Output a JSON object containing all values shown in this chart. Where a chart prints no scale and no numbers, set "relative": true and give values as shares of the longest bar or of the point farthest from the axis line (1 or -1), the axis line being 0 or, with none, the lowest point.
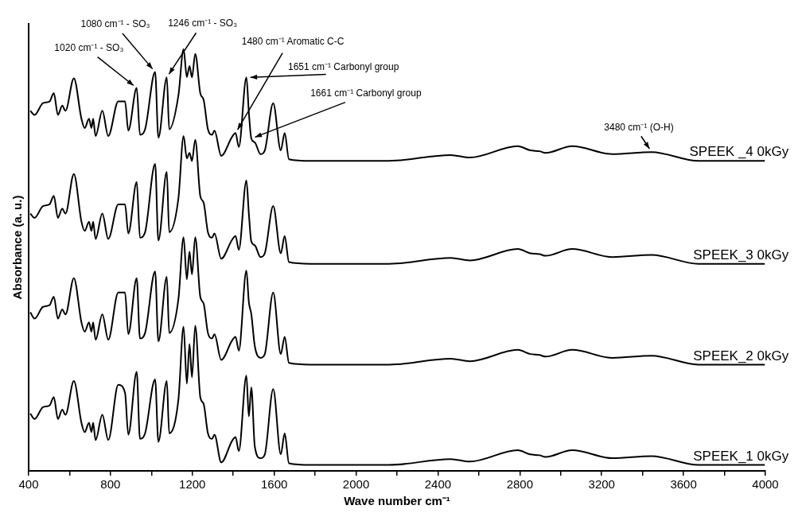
{
  "chart_data": {
    "type": "line",
    "xlabel": "Wave number cm⁻¹",
    "ylabel": "Absorbance (a. u.)",
    "relative": true,
    "marker": "none",
    "grid": false,
    "legend": false,
    "xlim": [
      400,
      4000
    ],
    "xticks": [
      400,
      {
        "value": 600,
        "label": null
      },
      800,
      {
        "value": 1000,
        "label": null
      },
      1200,
      {
        "value": 1400,
        "label": null
      },
      1600,
      {
        "value": 1800,
        "label": null
      },
      2000,
      {
        "value": 2200,
        "label": null
      },
      2400,
      {
        "value": 2600,
        "label": null
      },
      2800,
      {
        "value": 3000,
        "label": null
      },
      3200,
      {
        "value": 3400,
        "label": null
      },
      3600,
      {
        "value": 3800,
        "label": null
      },
      4000
    ],
    "x": [
      408,
      429,
      470,
      502,
      523,
      543,
      564,
      580,
      621,
      658,
      674,
      695,
      707,
      715,
      727,
      760,
      789,
      838,
      871,
      887,
      928,
      944,
      969,
      1018,
      1034,
      1075,
      1087,
      1132,
      1157,
      1173,
      1186,
      1198,
      1214,
      1239,
      1255,
      1276,
      1296,
      1308,
      1341,
      1394,
      1411,
      1427,
      1464,
      1476,
      1488,
      1505,
      1533,
      1554,
      1595,
      1632,
      1651,
      1672,
      1779,
      2160,
      2462,
      2556,
      2790,
      2851,
      2896,
      2925,
      3056,
      3252,
      3444,
      3673,
      3997
    ],
    "series": [
      {
        "name": "SPEEK _4 0kGy",
        "color": "#000000",
        "values": [
          0.854,
          0.844,
          0.872,
          0.876,
          0.896,
          0.844,
          0.866,
          0.854,
          0.931,
          0.835,
          0.813,
          0.835,
          0.813,
          0.835,
          0.794,
          0.854,
          0.794,
          0.876,
          0.876,
          0.807,
          0.908,
          0.797,
          0.81,
          0.946,
          0.79,
          0.933,
          0.81,
          0.891,
          1.0,
          0.934,
          0.96,
          0.933,
          0.989,
          0.895,
          0.88,
          0.81,
          0.797,
          0.807,
          0.747,
          0.792,
          0.801,
          0.768,
          0.933,
          0.85,
          0.788,
          0.779,
          0.751,
          0.76,
          0.872,
          0.76,
          0.801,
          0.739,
          0.735,
          0.735,
          0.749,
          0.743,
          0.77,
          0.76,
          0.758,
          0.754,
          0.77,
          0.751,
          0.756,
          0.735,
          0.735
        ]
      },
      {
        "name": "SPEEK_3 0kGy",
        "color": "#000000",
        "values": [
          0.61,
          0.6,
          0.628,
          0.632,
          0.652,
          0.6,
          0.622,
          0.61,
          0.704,
          0.591,
          0.569,
          0.591,
          0.569,
          0.591,
          0.55,
          0.61,
          0.55,
          0.632,
          0.632,
          0.563,
          0.685,
          0.553,
          0.566,
          0.728,
          0.546,
          0.709,
          0.566,
          0.647,
          0.794,
          0.741,
          0.754,
          0.735,
          0.785,
          0.651,
          0.636,
          0.566,
          0.553,
          0.563,
          0.503,
          0.548,
          0.557,
          0.524,
          0.689,
          0.61,
          0.544,
          0.535,
          0.507,
          0.516,
          0.628,
          0.516,
          0.557,
          0.495,
          0.491,
          0.491,
          0.505,
          0.499,
          0.526,
          0.516,
          0.514,
          0.51,
          0.526,
          0.507,
          0.512,
          0.491,
          0.491
        ]
      },
      {
        "name": "SPEEK_2 0kGy",
        "color": "#000000",
        "values": [
          0.376,
          0.361,
          0.389,
          0.393,
          0.413,
          0.361,
          0.383,
          0.371,
          0.457,
          0.352,
          0.33,
          0.352,
          0.33,
          0.352,
          0.311,
          0.371,
          0.311,
          0.423,
          0.423,
          0.324,
          0.457,
          0.314,
          0.327,
          0.473,
          0.307,
          0.46,
          0.327,
          0.408,
          0.554,
          0.454,
          0.52,
          0.466,
          0.554,
          0.412,
          0.397,
          0.327,
          0.314,
          0.324,
          0.263,
          0.309,
          0.318,
          0.285,
          0.475,
          0.4,
          0.372,
          0.296,
          0.268,
          0.277,
          0.423,
          0.277,
          0.318,
          0.256,
          0.252,
          0.252,
          0.266,
          0.26,
          0.287,
          0.277,
          0.275,
          0.271,
          0.287,
          0.268,
          0.273,
          0.252,
          0.252
        ]
      },
      {
        "name": "SPEEK_1 0kGy",
        "color": "#000000",
        "values": [
          0.136,
          0.123,
          0.151,
          0.155,
          0.175,
          0.123,
          0.145,
          0.133,
          0.213,
          0.114,
          0.092,
          0.114,
          0.092,
          0.114,
          0.073,
          0.133,
          0.073,
          0.204,
          0.185,
          0.086,
          0.235,
          0.076,
          0.089,
          0.217,
          0.069,
          0.213,
          0.089,
          0.17,
          0.342,
          0.207,
          0.301,
          0.222,
          0.344,
          0.174,
          0.159,
          0.089,
          0.076,
          0.086,
          0.02,
          0.071,
          0.08,
          0.047,
          0.226,
          0.129,
          0.198,
          0.058,
          0.03,
          0.039,
          0.194,
          0.039,
          0.089,
          0.018,
          0.014,
          0.014,
          0.028,
          0.022,
          0.049,
          0.039,
          0.037,
          0.033,
          0.049,
          0.03,
          0.035,
          0.014,
          0.014
        ]
      }
    ],
    "annotations": [
      {
        "text": "1020 cm⁻¹ - SO₃",
        "x": 928,
        "y": 0.908
      },
      {
        "text": "1080 cm⁻¹ - SO₃",
        "x": 1018,
        "y": 0.946
      },
      {
        "text": "1246 cm⁻¹ - SO₃",
        "x": 1075,
        "y": 0.933
      },
      {
        "text": "1480 cm⁻¹ Aromatic C-C",
        "x": 1411,
        "y": 0.801
      },
      {
        "text": "1651 cm⁻¹ Carbonyl group",
        "x": 1464,
        "y": 0.933
      },
      {
        "text": "1661 cm⁻¹ Carbonyl group",
        "x": 1488,
        "y": 0.788
      },
      {
        "text": "3480 cm⁻¹ (O-H)",
        "x": 3444,
        "y": 0.756
      }
    ]
  }
}
